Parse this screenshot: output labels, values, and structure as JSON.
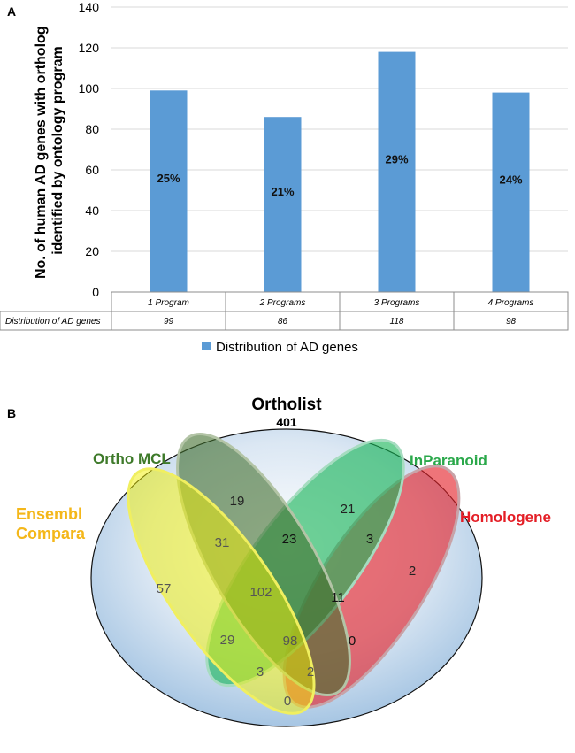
{
  "panel_a_label": "A",
  "panel_b_label": "B",
  "chart_data": [
    {
      "type": "bar",
      "ylabel_line1": "No. of human AD genes with ortholog",
      "ylabel_line2": "identified by ontology program",
      "ylim": [
        0,
        140
      ],
      "yticks": [
        0,
        20,
        40,
        60,
        80,
        100,
        120,
        140
      ],
      "categories": [
        "1 Program",
        "2 Programs",
        "3 Programs",
        "4 Programs"
      ],
      "series": [
        {
          "name": "Distribution of AD genes",
          "values": [
            99,
            86,
            118,
            98
          ],
          "labels": [
            "25%",
            "21%",
            "29%",
            "24%"
          ],
          "table_values": [
            "99",
            "86",
            "118",
            "98"
          ],
          "color": "#5b9bd5"
        }
      ],
      "legend": "bottom",
      "grid": true
    },
    {
      "type": "venn",
      "universe": {
        "name": "Ortholist",
        "count": "401"
      },
      "sets": [
        {
          "name_line1": "Ensembl",
          "name_line2": "Compara",
          "color": "#f4b71a"
        },
        {
          "name": "Ortho MCL",
          "color": "#3e7a2a"
        },
        {
          "name": "InParanoid",
          "color": "#2aa84a"
        },
        {
          "name": "Homologene",
          "color": "#e41e26"
        }
      ],
      "regions": {
        "e_only": "57",
        "o_only": "19",
        "i_only": "21",
        "h_only": "2",
        "e_o": "31",
        "o_i": "23",
        "i_h": "3",
        "e_o_i": "102",
        "o_i_h": "11",
        "e_i": "29",
        "all": "98",
        "o_h": "0",
        "e_i_h": "3",
        "e_o_h": "2",
        "e_h": "0"
      }
    }
  ]
}
